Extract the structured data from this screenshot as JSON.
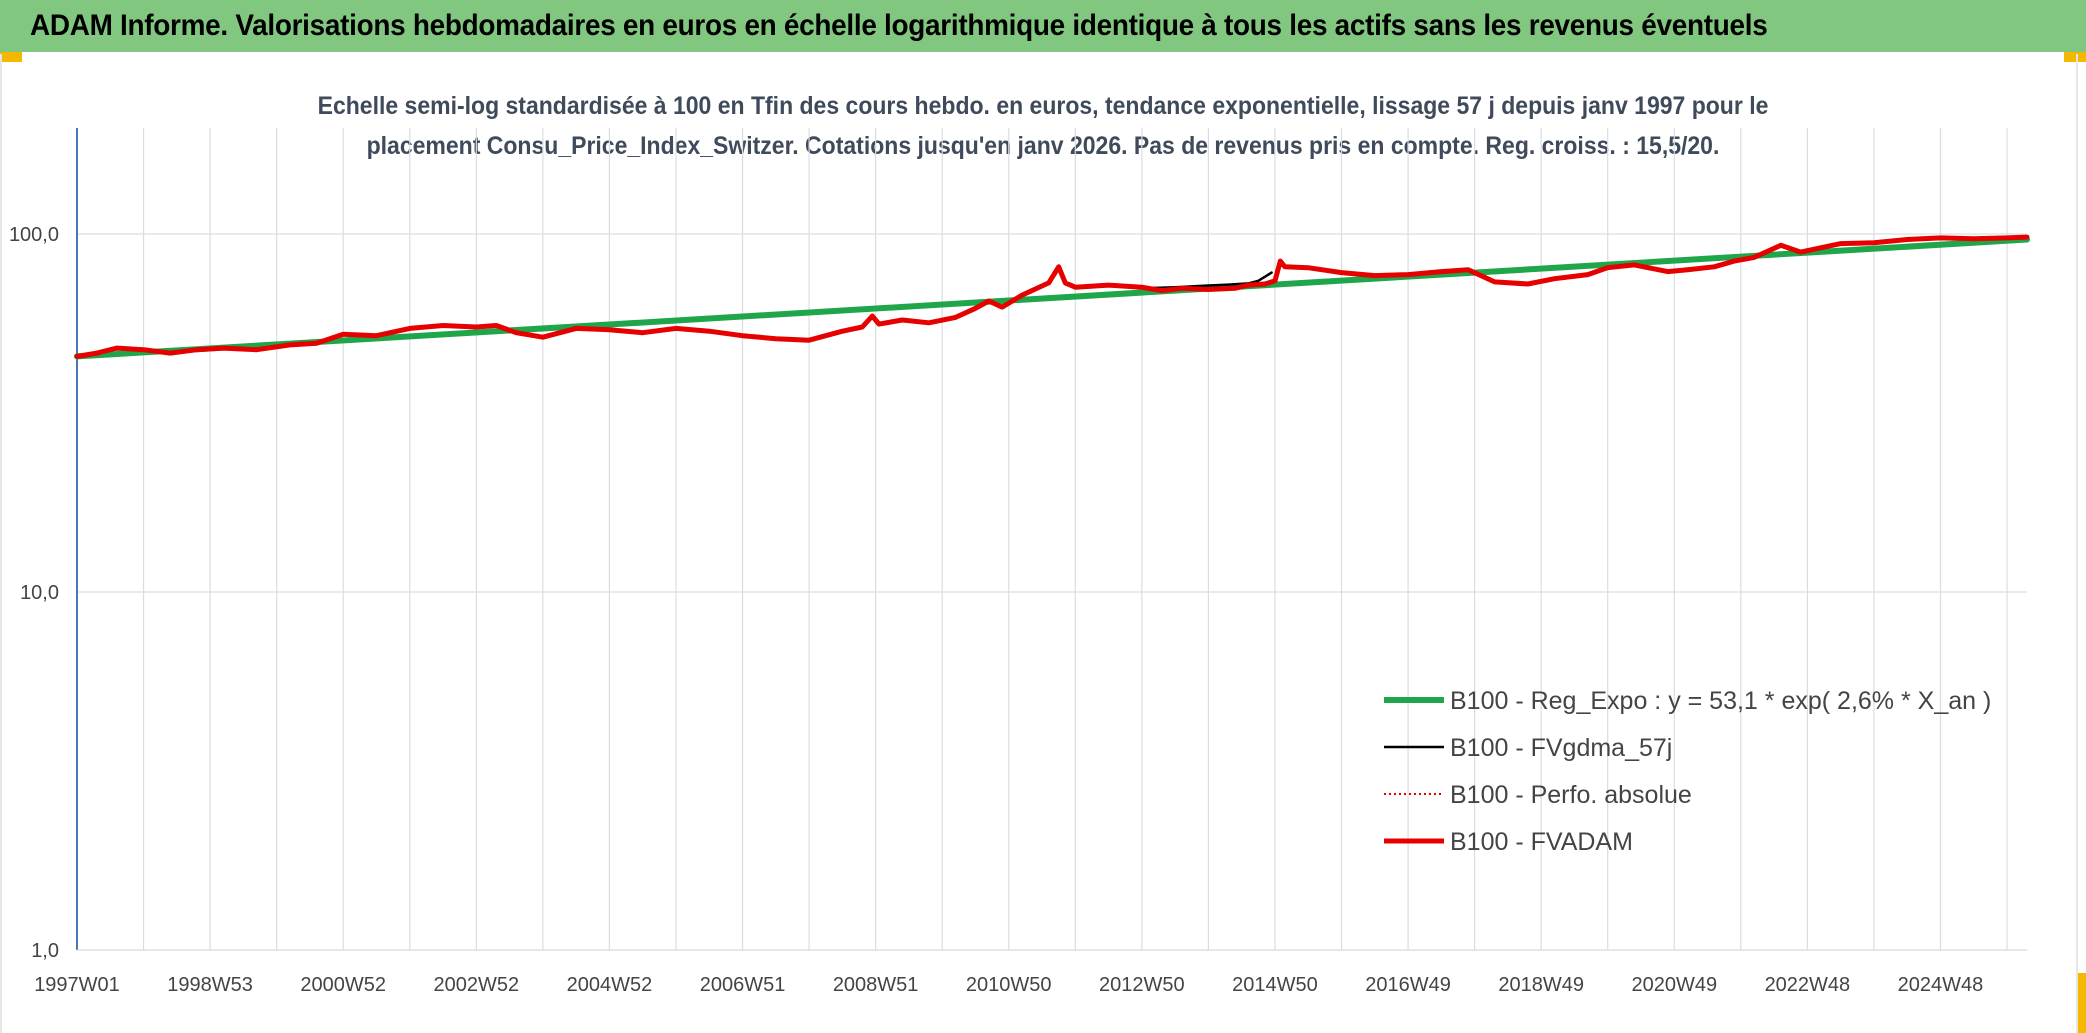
{
  "header": {
    "title": "ADAM Informe. Valorisations hebdomadaires en euros en échelle logarithmique identique à tous les actifs sans les revenus éventuels"
  },
  "colors": {
    "banner": "#82c77f",
    "trend": "#1fa64a",
    "fvgdma": "#000000",
    "perfo": "#e00000",
    "fvadam": "#e60000",
    "accent_corner": "#f4b800"
  },
  "chart_data": {
    "type": "line",
    "title_line1": "Echelle semi-log standardisée à 100 en Tfin des cours hebdo. en euros, tendance exponentielle, lissage 57 j depuis janv 1997 pour le",
    "title_line2": "placement Consu_Price_Index_Switzer. Cotations jusqu'en janv 2026. Pas de revenus pris en compte. Reg. croiss. : 15,5/20.",
    "y_scale": "log",
    "ylim": [
      1,
      180
    ],
    "xlim": [
      1997.0,
      2026.3
    ],
    "y_ticks": [
      {
        "value": 1,
        "label": "1,0"
      },
      {
        "value": 10,
        "label": "10,0"
      },
      {
        "value": 100,
        "label": "100,0"
      }
    ],
    "x_ticks": [
      {
        "value": 1997.0,
        "label": "1997W01"
      },
      {
        "value": 1999.0,
        "label": "1998W53"
      },
      {
        "value": 2001.0,
        "label": "2000W52"
      },
      {
        "value": 2003.0,
        "label": "2002W52"
      },
      {
        "value": 2005.0,
        "label": "2004W52"
      },
      {
        "value": 2007.0,
        "label": "2006W51"
      },
      {
        "value": 2009.0,
        "label": "2008W51"
      },
      {
        "value": 2011.0,
        "label": "2010W50"
      },
      {
        "value": 2013.0,
        "label": "2012W50"
      },
      {
        "value": 2015.0,
        "label": "2014W50"
      },
      {
        "value": 2017.0,
        "label": "2016W49"
      },
      {
        "value": 2019.0,
        "label": "2018W49"
      },
      {
        "value": 2021.0,
        "label": "2020W49"
      },
      {
        "value": 2023.0,
        "label": "2022W48"
      },
      {
        "value": 2025.0,
        "label": "2024W48"
      }
    ],
    "vertical_gridlines": [
      1997.0,
      1998.0,
      1999.0,
      2000.0,
      2001.0,
      2002.0,
      2003.0,
      2004.0,
      2005.0,
      2006.0,
      2007.0,
      2008.0,
      2009.0,
      2010.0,
      2011.0,
      2012.0,
      2013.0,
      2014.0,
      2015.0,
      2016.0,
      2017.0,
      2018.0,
      2019.0,
      2020.0,
      2021.0,
      2022.0,
      2023.0,
      2024.0,
      2025.0,
      2026.0
    ],
    "grid": true,
    "legend_position": "bottom-right",
    "series": [
      {
        "name": "B100 - Reg_Expo : y = 53,1 * exp( 2,6% *  X_an )",
        "key": "trend",
        "style": "thick",
        "x": [
          1997.0,
          2026.3
        ],
        "values": [
          45.5,
          96.5
        ]
      },
      {
        "name": "B100 - FVgdma_57j",
        "key": "fvgdma",
        "style": "thin",
        "x": [
          2013.0,
          2013.5,
          2014.0,
          2014.3,
          2014.6,
          2014.75,
          2014.85,
          2014.95
        ],
        "values": [
          70.5,
          71.0,
          71.8,
          72.2,
          72.8,
          74.0,
          76.0,
          78.0
        ]
      },
      {
        "name": "B100 - Perfo. absolue",
        "key": "perfo",
        "style": "dotted",
        "x": [],
        "values": []
      },
      {
        "name": "B100 - FVADAM",
        "key": "fvadam",
        "style": "thick",
        "x": [
          1997.0,
          1997.3,
          1997.6,
          1998.0,
          1998.4,
          1998.8,
          1999.2,
          1999.7,
          2000.2,
          2000.6,
          2001.0,
          2001.5,
          2002.0,
          2002.5,
          2003.0,
          2003.3,
          2003.6,
          2004.0,
          2004.5,
          2005.0,
          2005.5,
          2006.0,
          2006.5,
          2007.0,
          2007.5,
          2008.0,
          2008.5,
          2008.8,
          2008.95,
          2009.05,
          2009.4,
          2009.8,
          2010.2,
          2010.5,
          2010.7,
          2010.9,
          2011.2,
          2011.6,
          2011.75,
          2011.85,
          2012.0,
          2012.5,
          2013.0,
          2013.3,
          2013.6,
          2014.0,
          2014.4,
          2014.6,
          2014.85,
          2015.0,
          2015.08,
          2015.15,
          2015.5,
          2016.0,
          2016.5,
          2017.0,
          2017.5,
          2017.9,
          2018.3,
          2018.8,
          2019.2,
          2019.7,
          2020.0,
          2020.4,
          2020.9,
          2021.2,
          2021.6,
          2021.9,
          2022.2,
          2022.6,
          2022.9,
          2023.2,
          2023.5,
          2024.0,
          2024.5,
          2025.0,
          2025.5,
          2026.0,
          2026.3
        ],
        "values": [
          45.5,
          46.5,
          48.0,
          47.5,
          46.5,
          47.5,
          48.0,
          47.5,
          49.0,
          49.5,
          52.5,
          52.0,
          54.5,
          55.5,
          55.0,
          55.5,
          53.0,
          51.5,
          54.5,
          54.0,
          53.0,
          54.5,
          53.5,
          52.0,
          51.0,
          50.5,
          53.5,
          55.0,
          59.0,
          56.0,
          57.5,
          56.5,
          58.5,
          62.0,
          65.0,
          62.5,
          67.5,
          73.0,
          81.0,
          73.0,
          71.0,
          72.0,
          71.0,
          69.5,
          70.5,
          70.0,
          70.5,
          72.0,
          72.5,
          74.0,
          84.0,
          81.0,
          80.5,
          78.0,
          76.5,
          77.0,
          78.5,
          79.5,
          73.5,
          72.5,
          75.0,
          77.0,
          80.5,
          82.0,
          78.5,
          79.5,
          81.0,
          84.0,
          86.0,
          93.0,
          89.0,
          91.5,
          94.0,
          94.5,
          96.5,
          97.5,
          97.0,
          97.5,
          98.0
        ]
      }
    ]
  }
}
